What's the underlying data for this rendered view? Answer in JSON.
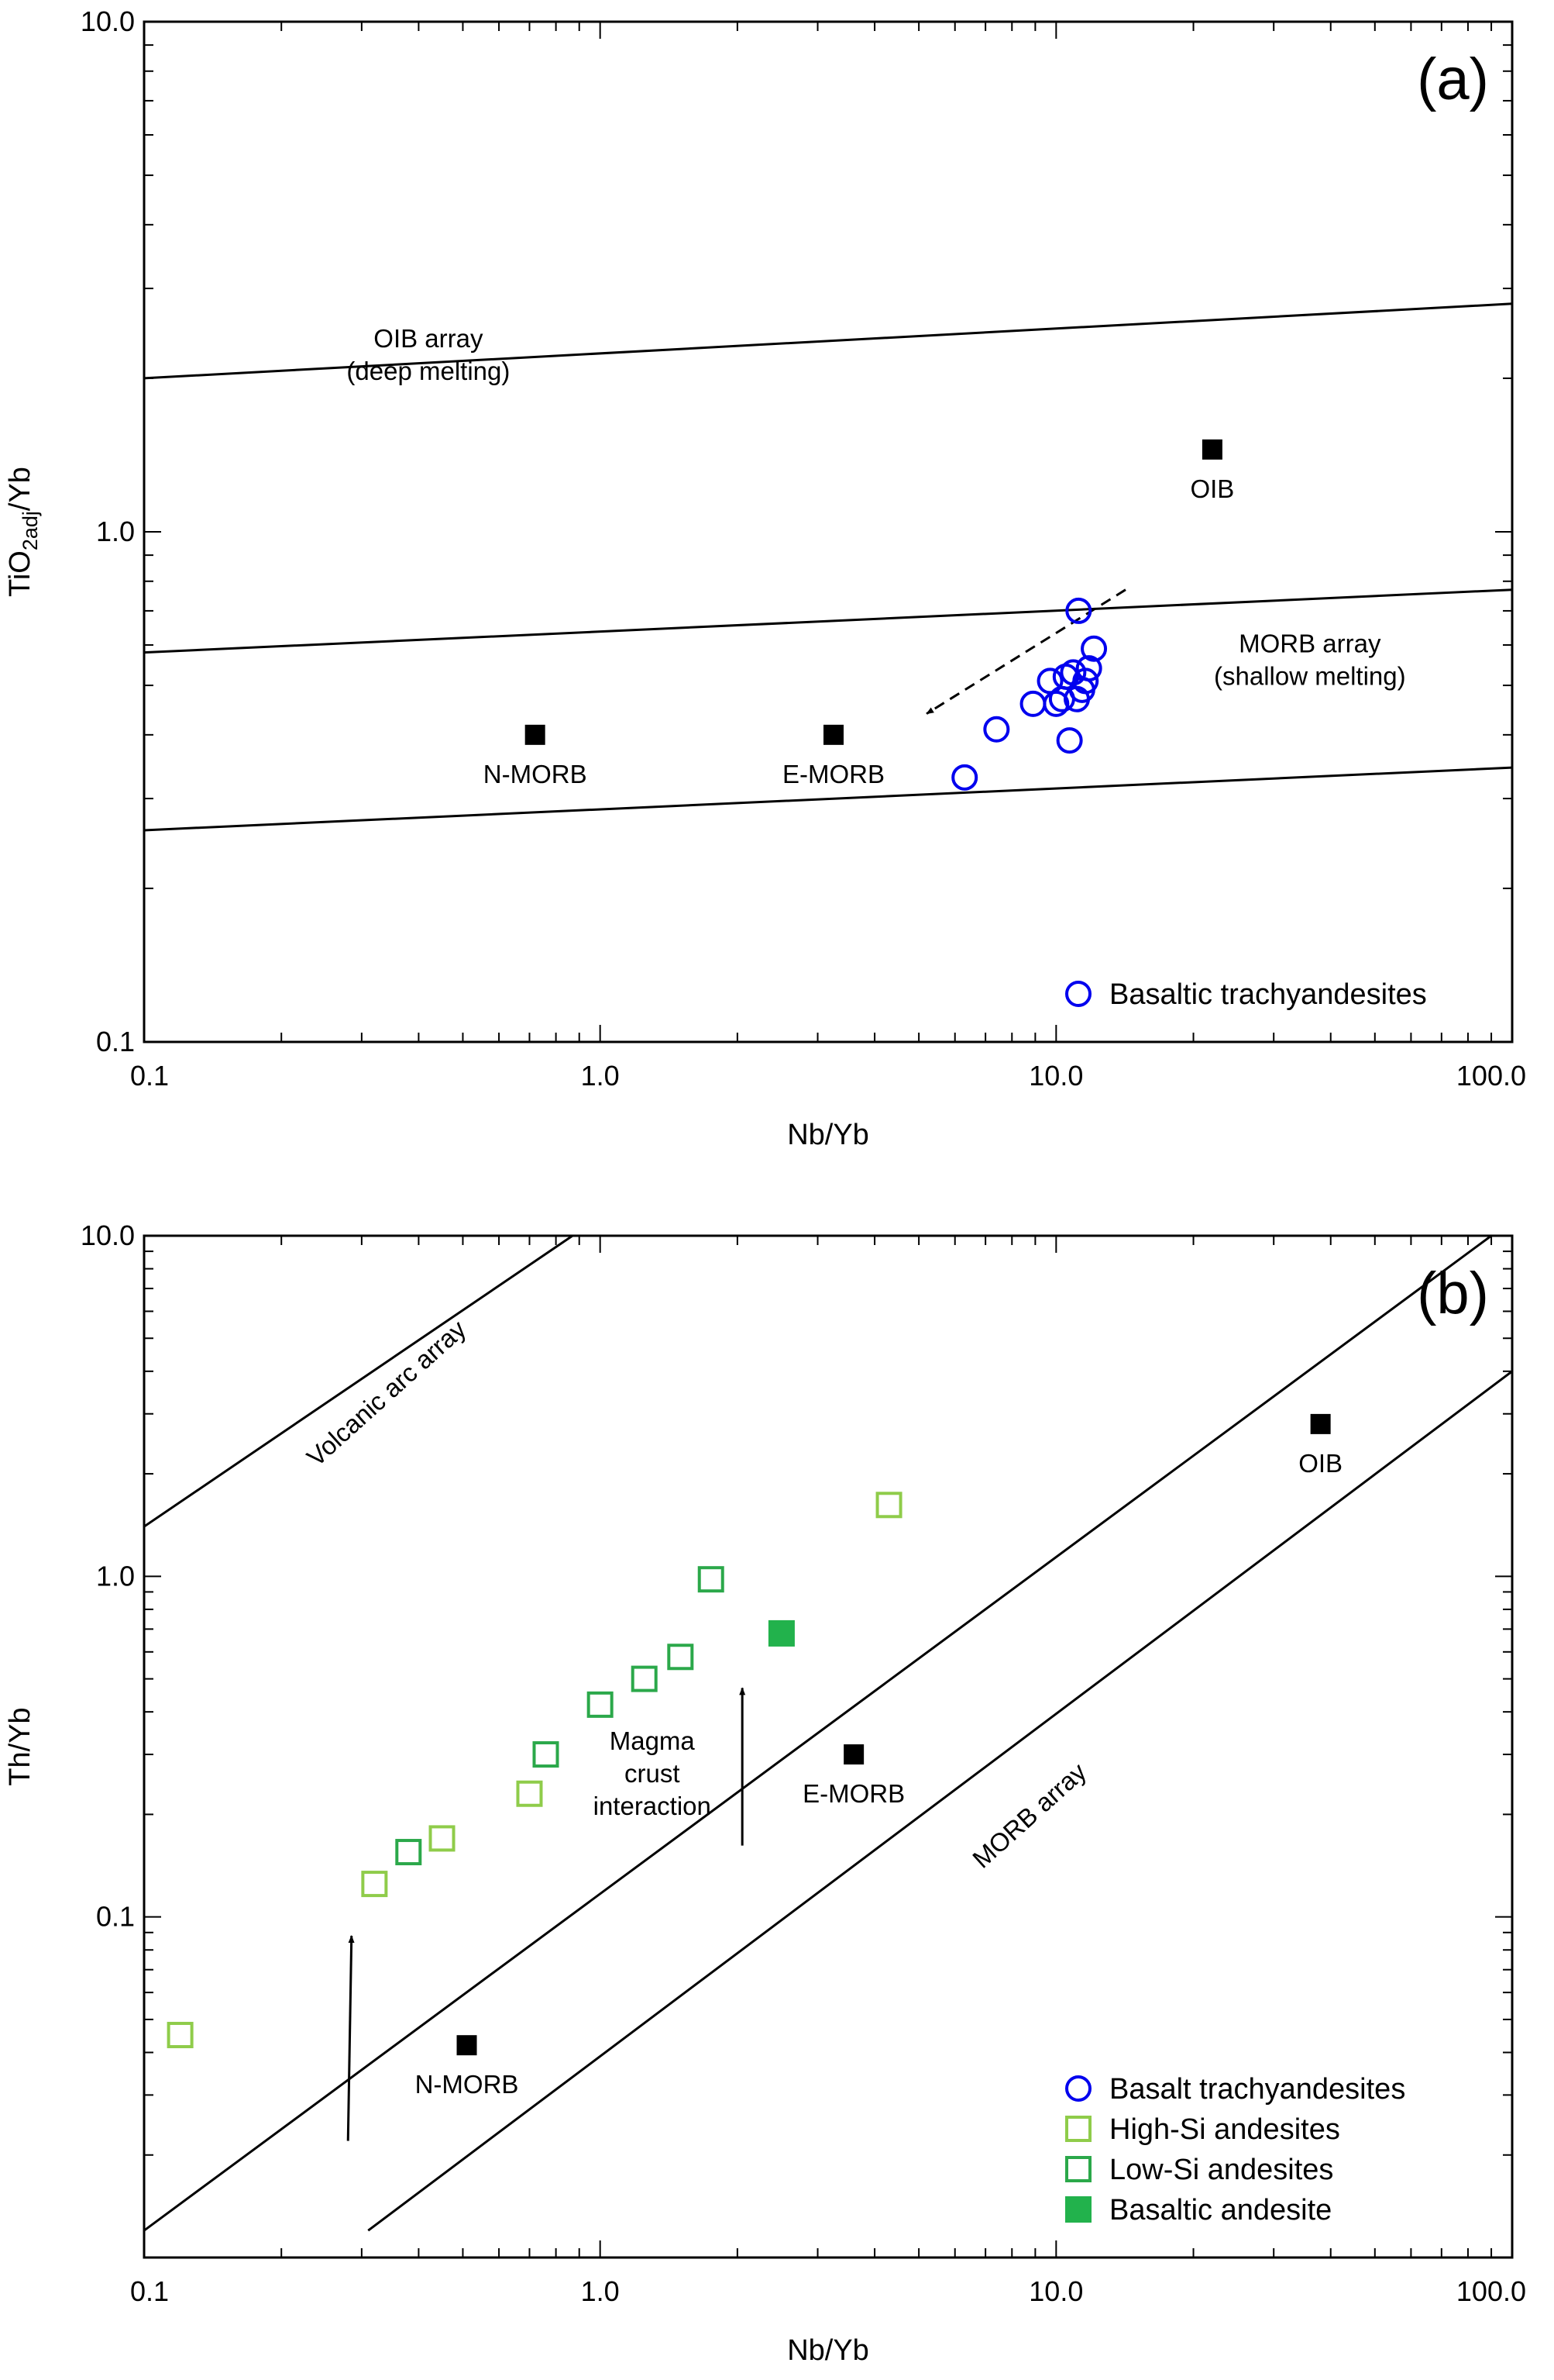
{
  "chart_data": [
    {
      "type": "scatter",
      "panel_label": "(a)",
      "xlabel": "Nb/Yb",
      "ylabel": {
        "base": "TiO",
        "sub": "2adj",
        "rest": "/Yb"
      },
      "x_scale": "log",
      "y_scale": "log",
      "xlim": [
        0.1,
        100
      ],
      "ylim": [
        0.1,
        10
      ],
      "x_ticks": [
        {
          "v": 0.1,
          "label": "0.1"
        },
        {
          "v": 1,
          "label": "1.0"
        },
        {
          "v": 10,
          "label": "10.0"
        },
        {
          "v": 100,
          "label": "100.0"
        }
      ],
      "y_ticks": [
        {
          "v": 0.1,
          "label": "0.1"
        },
        {
          "v": 1,
          "label": "1.0"
        },
        {
          "v": 10,
          "label": "10.0"
        }
      ],
      "grid": false,
      "reference_lines": [
        {
          "from": [
            0.1,
            2.0
          ],
          "to": [
            100,
            2.8
          ]
        },
        {
          "from": [
            0.1,
            0.58
          ],
          "to": [
            100,
            0.77
          ]
        },
        {
          "from": [
            0.1,
            0.26
          ],
          "to": [
            100,
            0.345
          ]
        }
      ],
      "field_labels": [
        {
          "lines": [
            "OIB array",
            "(deep melting)"
          ],
          "x": 0.42,
          "y": 2.3
        },
        {
          "lines": [
            "MORB array",
            "(shallow melting)"
          ],
          "x": 36,
          "y": 0.58
        }
      ],
      "reference_points": [
        {
          "label": "N-MORB",
          "x": 0.72,
          "y": 0.4
        },
        {
          "label": "E-MORB",
          "x": 3.25,
          "y": 0.4
        },
        {
          "label": "OIB",
          "x": 22,
          "y": 1.45
        }
      ],
      "arrows": [
        {
          "from": [
            14.2,
            0.77
          ],
          "to": [
            5.2,
            0.44
          ],
          "style": "dashed"
        }
      ],
      "series": [
        {
          "name": "Basaltic trachyandesites",
          "marker": "circle-open",
          "color": "#0000ee",
          "x": [
            6.3,
            7.4,
            8.9,
            9.7,
            10.0,
            10.3,
            10.5,
            10.9,
            11.1,
            11.2,
            11.4,
            11.6,
            11.8,
            12.1,
            10.7
          ],
          "y": [
            0.33,
            0.41,
            0.46,
            0.51,
            0.46,
            0.47,
            0.52,
            0.53,
            0.47,
            0.7,
            0.49,
            0.51,
            0.54,
            0.59,
            0.39
          ]
        }
      ],
      "legend": {
        "position": "bottom-right",
        "entries": [
          {
            "label": "Basaltic trachyandesites",
            "marker": "circle-open",
            "color": "#0000ee"
          }
        ]
      }
    },
    {
      "type": "scatter",
      "panel_label": "(b)",
      "xlabel": "Nb/Yb",
      "ylabel": {
        "base": "Th/Yb",
        "sub": "",
        "rest": ""
      },
      "x_scale": "log",
      "y_scale": "log",
      "xlim": [
        0.1,
        100
      ],
      "ylim": [
        0.01,
        10
      ],
      "x_ticks": [
        {
          "v": 0.1,
          "label": "0.1"
        },
        {
          "v": 1,
          "label": "1.0"
        },
        {
          "v": 10,
          "label": "10.0"
        },
        {
          "v": 100,
          "label": "100.0"
        }
      ],
      "y_ticks": [
        {
          "v": 0.1,
          "label": "0.1"
        },
        {
          "v": 1,
          "label": "1.0"
        },
        {
          "v": 10,
          "label": "10.0"
        }
      ],
      "grid": false,
      "reference_lines": [
        {
          "from": [
            0.1,
            1.4
          ],
          "to": [
            0.87,
            10
          ]
        },
        {
          "from": [
            0.1,
            0.012
          ],
          "to": [
            90,
            10
          ]
        },
        {
          "from": [
            0.31,
            0.012
          ],
          "to": [
            100,
            4.0
          ]
        }
      ],
      "field_labels": [
        {
          "lines": [
            "Volcanic arc array"
          ],
          "x": 0.35,
          "y": 3.3,
          "rotate": -42
        },
        {
          "lines": [
            "MORB array"
          ],
          "x": 9.0,
          "y": 0.19,
          "rotate": -42
        },
        {
          "lines": [
            "Magma",
            "crust",
            "interaction"
          ],
          "x": 1.3,
          "y": 0.31
        }
      ],
      "reference_points": [
        {
          "label": "N-MORB",
          "x": 0.51,
          "y": 0.042
        },
        {
          "label": "E-MORB",
          "x": 3.6,
          "y": 0.3
        },
        {
          "label": "OIB",
          "x": 38,
          "y": 2.8
        }
      ],
      "arrows": [
        {
          "from": [
            0.28,
            0.022
          ],
          "to": [
            0.285,
            0.088
          ],
          "style": "solid"
        },
        {
          "from": [
            2.05,
            0.162
          ],
          "to": [
            2.05,
            0.47
          ],
          "style": "solid"
        }
      ],
      "series": [
        {
          "name": "High-Si andesites",
          "marker": "square-open",
          "color": "#8fcc4a",
          "x": [
            0.12,
            0.32,
            0.45,
            0.7,
            4.3
          ],
          "y": [
            0.045,
            0.125,
            0.17,
            0.23,
            1.62
          ]
        },
        {
          "name": "Low-Si andesites",
          "marker": "square-open",
          "color": "#2ba84a",
          "x": [
            0.38,
            0.76,
            1.0,
            1.25,
            1.5,
            1.75
          ],
          "y": [
            0.155,
            0.3,
            0.42,
            0.5,
            0.58,
            0.98
          ]
        },
        {
          "name": "Basaltic andesite",
          "marker": "square-filled",
          "color": "#22b24c",
          "x": [
            2.5
          ],
          "y": [
            0.68
          ]
        }
      ],
      "legend": {
        "position": "bottom-right",
        "entries": [
          {
            "label": "Basalt trachyandesites",
            "marker": "circle-open",
            "color": "#0000ee"
          },
          {
            "label": "High-Si andesites",
            "marker": "square-open",
            "color": "#8fcc4a"
          },
          {
            "label": "Low-Si andesites",
            "marker": "square-open",
            "color": "#2ba84a"
          },
          {
            "label": "Basaltic andesite",
            "marker": "square-filled",
            "color": "#22b24c"
          }
        ]
      }
    }
  ]
}
